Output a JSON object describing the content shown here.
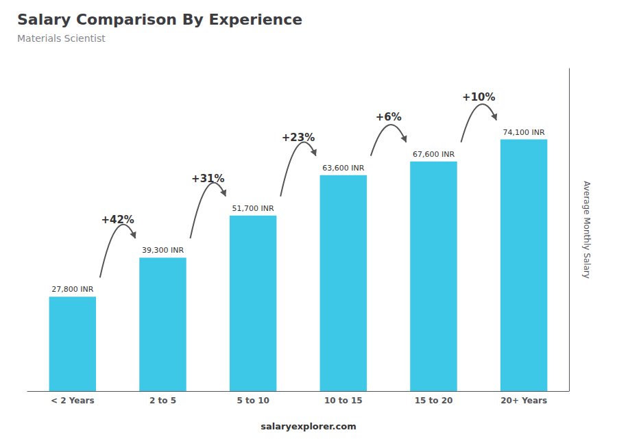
{
  "chart_data": {
    "type": "bar",
    "title": "Salary Comparison By Experience",
    "subtitle": "Materials Scientist",
    "ylabel": "Average Monthly Salary",
    "footer": "salaryexplorer.com",
    "categories": [
      "< 2 Years",
      "2 to 5",
      "5 to 10",
      "10 to 15",
      "15 to 20",
      "20+ Years"
    ],
    "values": [
      27800,
      39300,
      51700,
      63600,
      67600,
      74100
    ],
    "value_labels": [
      "27,800 INR",
      "39,300 INR",
      "51,700 INR",
      "63,600 INR",
      "67,600 INR",
      "74,100 INR"
    ],
    "data_labels": true,
    "annotations": [
      "+42%",
      "+31%",
      "+23%",
      "+6%",
      "+10%"
    ],
    "color": "#3ec8e8",
    "ylim": [
      0,
      95000
    ],
    "grid": false,
    "tick_labels": "x"
  }
}
